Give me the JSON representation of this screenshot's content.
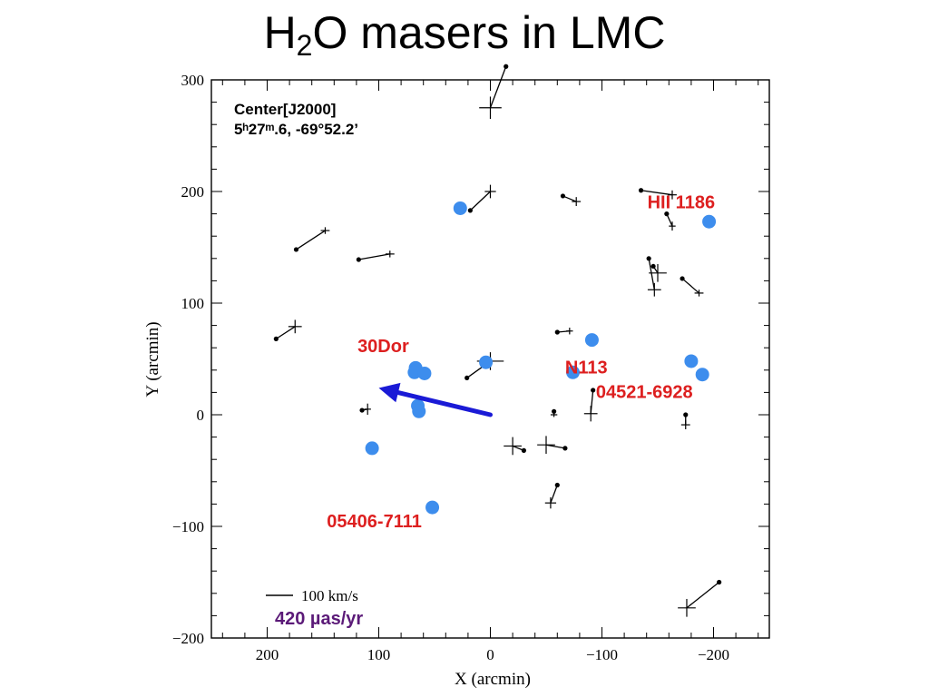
{
  "title": {
    "prefix": "H",
    "sub": "2",
    "suffix": "O masers in LMC"
  },
  "chart_data": {
    "type": "scatter",
    "xlabel": "X (arcmin)",
    "ylabel": "Y (arcmin)",
    "xlim": [
      250,
      -250
    ],
    "ylim": [
      -200,
      300
    ],
    "x_ticks": [
      200,
      100,
      0,
      -100,
      -200
    ],
    "x_tick_labels": [
      "200",
      "100",
      "0",
      "−100",
      "−200"
    ],
    "y_ticks": [
      300,
      200,
      100,
      0,
      -100,
      -200
    ],
    "y_tick_labels": [
      "300",
      "200",
      "100",
      "0",
      "−100",
      "−200"
    ],
    "grid": false,
    "center_label": "Center[J2000]",
    "center_coords": "5ʰ27ᵐ.6, -69°52.2’",
    "scale_label": "100 km/s",
    "scale_label_purple": "420 µas/yr",
    "colors": {
      "maser_dot": "#3d8ded",
      "annotation": "#dd1f1f",
      "big_arrow": "#1a1ad6",
      "scale_purple": "#5b1a78"
    },
    "maser_sites": [
      {
        "x": 27,
        "y": 185
      },
      {
        "x": -196,
        "y": 173
      },
      {
        "x": -91,
        "y": 67
      },
      {
        "x": 67,
        "y": 42
      },
      {
        "x": 68,
        "y": 38
      },
      {
        "x": 59,
        "y": 37
      },
      {
        "x": 4,
        "y": 47
      },
      {
        "x": -74,
        "y": 38
      },
      {
        "x": -180,
        "y": 48
      },
      {
        "x": -190,
        "y": 36
      },
      {
        "x": 65,
        "y": 8
      },
      {
        "x": 64,
        "y": 3
      },
      {
        "x": 106,
        "y": -30
      },
      {
        "x": 52,
        "y": -83
      }
    ],
    "motion_vectors": [
      {
        "x": 0,
        "y": 275,
        "ex": 10,
        "ey": 10,
        "vx": -14,
        "vy": 37
      },
      {
        "x": 0,
        "y": 200,
        "ex": 5,
        "ey": 6,
        "vx": 18,
        "vy": -17
      },
      {
        "x": -77,
        "y": 191,
        "ex": 4,
        "ey": 4,
        "vx": 12,
        "vy": 5
      },
      {
        "x": -163,
        "y": 197,
        "ex": 4,
        "ey": 4,
        "vx": 28,
        "vy": 4
      },
      {
        "x": -163,
        "y": 169,
        "ex": 3,
        "ey": 4,
        "vx": 5,
        "vy": 11
      },
      {
        "x": 148,
        "y": 165,
        "ex": 4,
        "ey": 3,
        "vx": 26,
        "vy": -17
      },
      {
        "x": 90,
        "y": 144,
        "ex": 4,
        "ey": 3,
        "vx": 28,
        "vy": -5
      },
      {
        "x": -150,
        "y": 127,
        "ex": 8,
        "ey": 8,
        "vx": 4,
        "vy": 6
      },
      {
        "x": -147,
        "y": 112,
        "ex": 6,
        "ey": 6,
        "vx": 5,
        "vy": 28
      },
      {
        "x": -187,
        "y": 109,
        "ex": 4,
        "ey": 3,
        "vx": 15,
        "vy": 13
      },
      {
        "x": 175,
        "y": 79,
        "ex": 6,
        "ey": 6,
        "vx": 17,
        "vy": -11
      },
      {
        "x": -71,
        "y": 75,
        "ex": 3,
        "ey": 3,
        "vx": 11,
        "vy": -1
      },
      {
        "x": 0,
        "y": 48,
        "ex": 12,
        "ey": 8,
        "vx": 21,
        "vy": -15
      },
      {
        "x": 110,
        "y": 5,
        "ex": 3,
        "ey": 5,
        "vx": 5,
        "vy": -1
      },
      {
        "x": -57,
        "y": 0,
        "ex": 3,
        "ey": 2,
        "vx": 0,
        "vy": 3
      },
      {
        "x": -90,
        "y": 1,
        "ex": 6,
        "ey": 7,
        "vx": -2,
        "vy": 21
      },
      {
        "x": -175,
        "y": -9,
        "ex": 4,
        "ey": 4,
        "vx": 0,
        "vy": 9
      },
      {
        "x": -20,
        "y": -28,
        "ex": 8,
        "ey": 8,
        "vx": -10,
        "vy": -4
      },
      {
        "x": -50,
        "y": -27,
        "ex": 8,
        "ey": 8,
        "vx": -17,
        "vy": -3
      },
      {
        "x": -54,
        "y": -79,
        "ex": 5,
        "ey": 5,
        "vx": -6,
        "vy": 16
      },
      {
        "x": -176,
        "y": -173,
        "ex": 8,
        "ey": 8,
        "vx": -29,
        "vy": 23
      }
    ],
    "big_arrow": {
      "x": 0,
      "y": 0,
      "tx": 100,
      "ty": 24
    },
    "annotations": [
      {
        "text": "HII 1186",
        "x": -171,
        "y": 185
      },
      {
        "text": "30Dor",
        "x": 96,
        "y": 56
      },
      {
        "text": "N113",
        "x": -86,
        "y": 37
      },
      {
        "text": "04521-6928",
        "x": -138,
        "y": 15
      },
      {
        "text": "05406-7111",
        "x": 104,
        "y": -101
      }
    ]
  }
}
